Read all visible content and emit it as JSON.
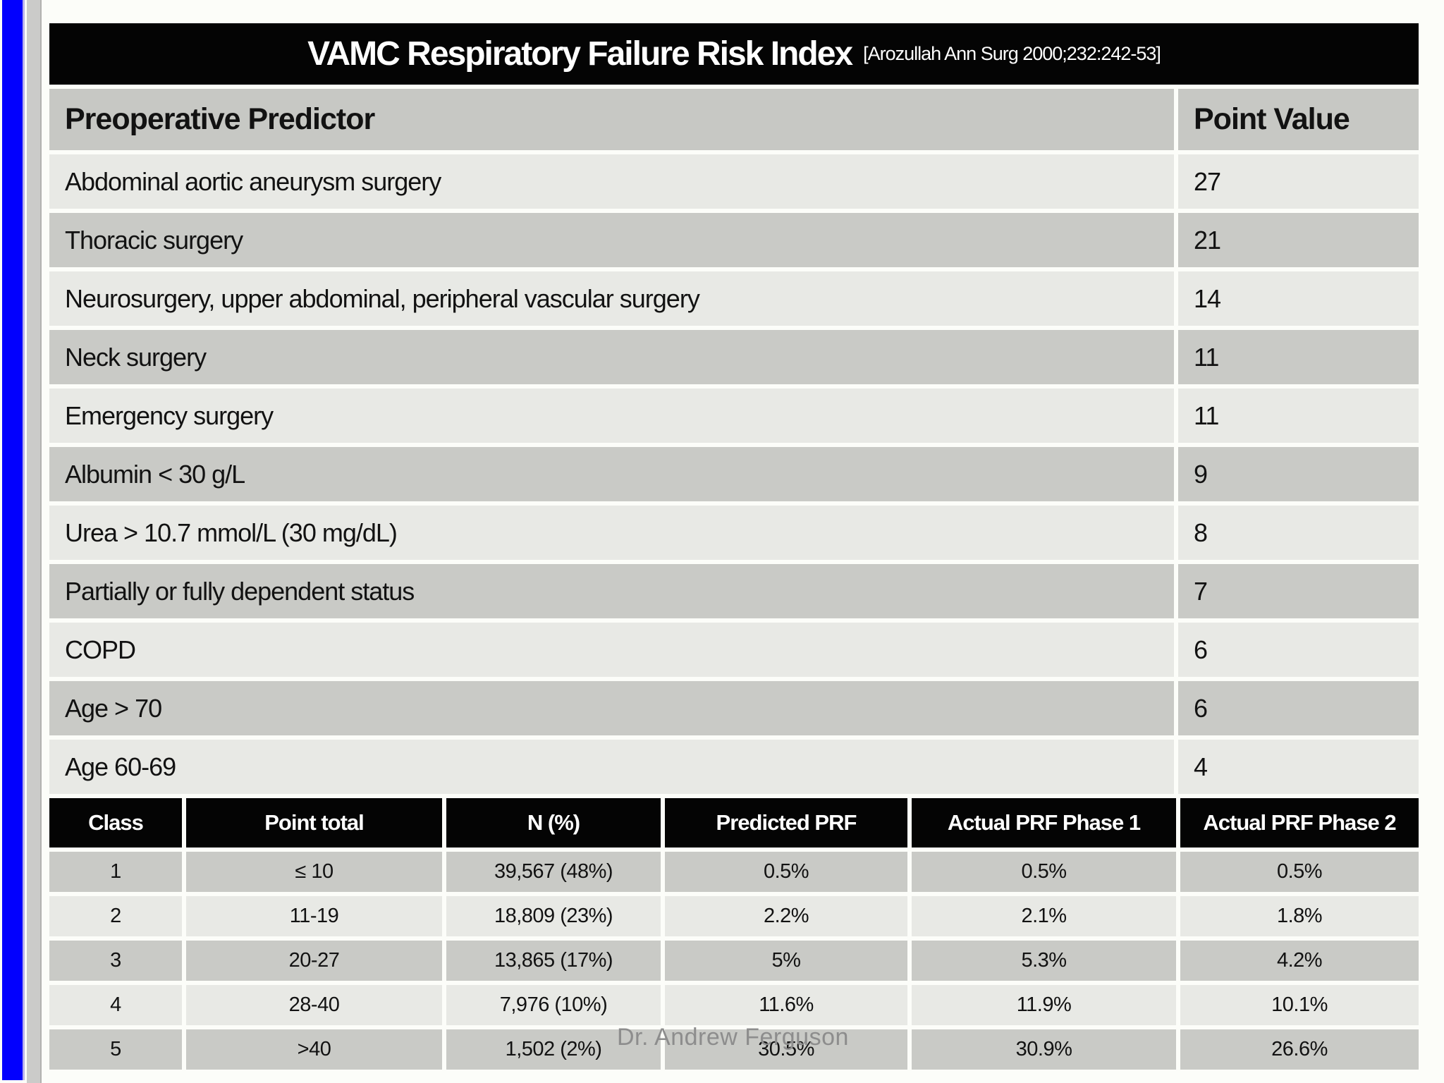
{
  "title": {
    "main": "VAMC Respiratory Failure Risk Index",
    "citation": "[Arozullah Ann Surg 2000;232:242-53]"
  },
  "predictor_table": {
    "headers": {
      "predictor": "Preoperative Predictor",
      "point_value": "Point Value"
    },
    "rows": [
      {
        "predictor": "Abdominal aortic aneurysm surgery",
        "points": "27"
      },
      {
        "predictor": "Thoracic surgery",
        "points": "21"
      },
      {
        "predictor": "Neurosurgery, upper abdominal, peripheral vascular surgery",
        "points": "14"
      },
      {
        "predictor": "Neck surgery",
        "points": "11"
      },
      {
        "predictor": "Emergency surgery",
        "points": "11"
      },
      {
        "predictor": "Albumin < 30 g/L",
        "points": "9"
      },
      {
        "predictor": "Urea > 10.7 mmol/L (30 mg/dL)",
        "points": "8"
      },
      {
        "predictor": "Partially or fully dependent status",
        "points": "7"
      },
      {
        "predictor": "COPD",
        "points": "6"
      },
      {
        "predictor": "Age > 70",
        "points": "6"
      },
      {
        "predictor": "Age 60-69",
        "points": "4"
      }
    ]
  },
  "risk_class_table": {
    "headers": [
      "Class",
      "Point total",
      "N (%)",
      "Predicted PRF",
      "Actual PRF Phase 1",
      "Actual PRF Phase 2"
    ],
    "rows": [
      [
        "1",
        "≤ 10",
        "39,567 (48%)",
        "0.5%",
        "0.5%",
        "0.5%"
      ],
      [
        "2",
        "11-19",
        "18,809 (23%)",
        "2.2%",
        "2.1%",
        "1.8%"
      ],
      [
        "3",
        "20-27",
        "13,865 (17%)",
        "5%",
        "5.3%",
        "4.2%"
      ],
      [
        "4",
        "28-40",
        "7,976 (10%)",
        "11.6%",
        "11.9%",
        "10.1%"
      ],
      [
        "5",
        ">40",
        "1,502 (2%)",
        "30.5%",
        "30.9%",
        "26.6%"
      ]
    ]
  },
  "watermark": "Dr. Andrew Ferguson",
  "colors": {
    "accent_blue_bar": "#0200fe",
    "side_gray_bar": "#cbcbc9",
    "header_black": "#040404",
    "row_light": "#e8e9e5",
    "row_dark": "#c9cac6",
    "watermark_gray": "#8d8d8d"
  }
}
